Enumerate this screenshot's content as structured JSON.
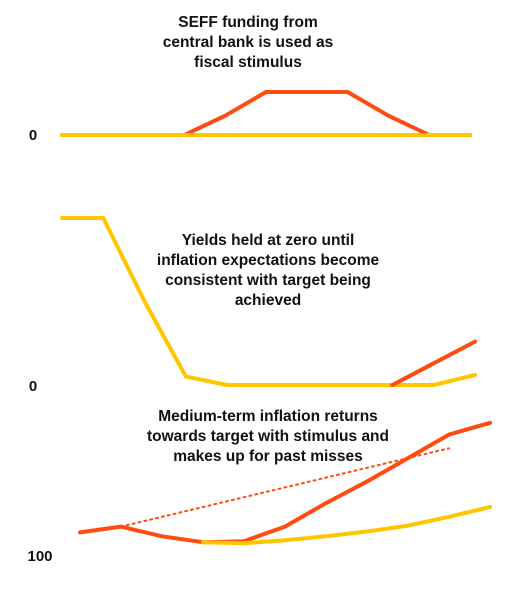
{
  "colors": {
    "actual": "#ff4a10",
    "baseline": "#ffc600",
    "text": "#111111"
  },
  "chart_data": [
    {
      "type": "line",
      "panel": "seff-funding",
      "annotation": [
        "SEFF funding from",
        "central bank is used as",
        "fiscal stimulus"
      ],
      "y_tick_label": "0",
      "x": [
        0,
        1,
        2,
        3,
        4,
        5,
        6,
        7,
        8,
        9,
        10
      ],
      "ylim": [
        0,
        1
      ],
      "series": [
        {
          "color": "actual",
          "values": [
            0,
            0,
            0,
            0,
            0.45,
            1,
            1,
            1,
            0.45,
            0,
            0
          ]
        },
        {
          "color": "baseline",
          "values": [
            0,
            0,
            0,
            0,
            0,
            0,
            0,
            0,
            0,
            0,
            0
          ]
        }
      ]
    },
    {
      "type": "line",
      "panel": "yields",
      "annotation": [
        "Yields held at zero until",
        "inflation expectations become",
        "consistent with target being",
        "achieved"
      ],
      "y_tick_label": "0",
      "x": [
        0,
        1,
        2,
        3,
        4,
        5,
        6,
        7,
        8,
        9,
        10
      ],
      "ylim": [
        0,
        1
      ],
      "series": [
        {
          "color": "baseline",
          "values": [
            1,
            1,
            0.5,
            0.05,
            0,
            0,
            0,
            0,
            0,
            0,
            0.06
          ]
        },
        {
          "color": "actual",
          "values": [
            null,
            null,
            null,
            null,
            null,
            null,
            null,
            null,
            0,
            0.13,
            0.26
          ]
        }
      ]
    },
    {
      "type": "line",
      "panel": "inflation",
      "annotation": [
        "Medium-term inflation returns",
        "towards target with stimulus and",
        "makes up for past misses"
      ],
      "y_tick_label": "100",
      "x": [
        0,
        1,
        2,
        3,
        4,
        5,
        6,
        7,
        8,
        9,
        10
      ],
      "ylim": [
        99,
        106
      ],
      "series": [
        {
          "color": "actual",
          "style": "solid",
          "values": [
            100,
            100.3,
            99.8,
            99.5,
            99.55,
            100.3,
            101.5,
            102.6,
            103.8,
            105,
            105.6
          ]
        },
        {
          "color": "baseline",
          "style": "solid",
          "values": [
            null,
            null,
            null,
            99.5,
            99.45,
            99.6,
            99.8,
            100.05,
            100.35,
            100.8,
            101.3
          ]
        },
        {
          "color": "actual",
          "style": "dotted",
          "values": [
            null,
            100.3,
            100.8,
            101.3,
            101.8,
            102.3,
            102.8,
            103.3,
            103.8,
            104.3,
            null
          ]
        }
      ]
    }
  ]
}
